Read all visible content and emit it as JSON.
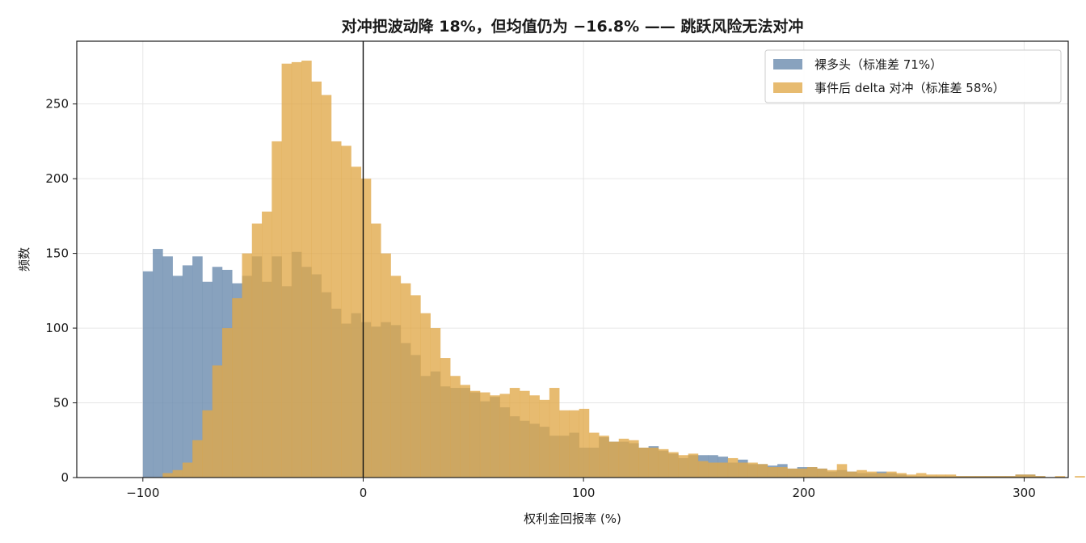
{
  "chart_data": {
    "type": "histogram",
    "title": "对冲把波动降 18%，但均值仍为 −16.8% —— 跳跃风险无法对冲",
    "xlabel": "权利金回报率 (%)",
    "ylabel": "频数",
    "xlim": [
      -130,
      320
    ],
    "ylim": [
      0,
      292
    ],
    "xticks": [
      -100,
      0,
      100,
      200,
      300
    ],
    "xtick_labels": [
      "−100",
      "0",
      "100",
      "200",
      "300"
    ],
    "yticks": [
      0,
      50,
      100,
      150,
      200,
      250
    ],
    "grid": true,
    "legend_position": "top-right",
    "bin_start": -100,
    "bin_width": 4.5,
    "vline_x": 0,
    "series": [
      {
        "name": "裸多头（标准差 71%）",
        "color": "#6e8db0",
        "values": [
          138,
          153,
          148,
          135,
          142,
          148,
          131,
          141,
          139,
          130,
          135,
          148,
          131,
          148,
          128,
          151,
          141,
          136,
          124,
          113,
          103,
          110,
          104,
          101,
          104,
          102,
          90,
          82,
          68,
          71,
          61,
          60,
          60,
          57,
          51,
          54,
          47,
          41,
          38,
          36,
          34,
          28,
          28,
          30,
          20,
          20,
          27,
          24,
          24,
          23,
          20,
          21,
          18,
          16,
          13,
          15,
          15,
          15,
          14,
          10,
          12,
          9,
          9,
          8,
          9,
          6,
          7,
          7,
          6,
          4,
          5,
          4,
          3,
          3,
          4,
          3,
          2,
          1,
          1,
          1,
          1,
          1,
          1,
          1,
          1,
          1,
          1,
          1,
          2,
          2,
          1
        ]
      },
      {
        "name": "事件后 delta 对冲（标准差 58%）",
        "color": "#e0a848",
        "values": [
          0,
          0,
          3,
          5,
          10,
          25,
          45,
          75,
          100,
          120,
          150,
          170,
          178,
          225,
          277,
          278,
          279,
          265,
          256,
          225,
          222,
          208,
          200,
          170,
          150,
          135,
          130,
          122,
          110,
          100,
          80,
          68,
          62,
          58,
          57,
          55,
          56,
          60,
          58,
          55,
          52,
          60,
          45,
          45,
          46,
          30,
          28,
          24,
          26,
          25,
          20,
          20,
          19,
          17,
          15,
          16,
          11,
          10,
          10,
          13,
          10,
          10,
          9,
          7,
          7,
          6,
          6,
          7,
          6,
          5,
          9,
          4,
          5,
          4,
          3,
          4,
          3,
          2,
          3,
          2,
          2,
          2,
          1,
          1,
          1,
          1,
          1,
          1,
          2,
          2,
          1,
          0,
          1,
          0,
          1,
          0,
          0,
          0,
          3,
          2,
          0
        ]
      }
    ]
  }
}
